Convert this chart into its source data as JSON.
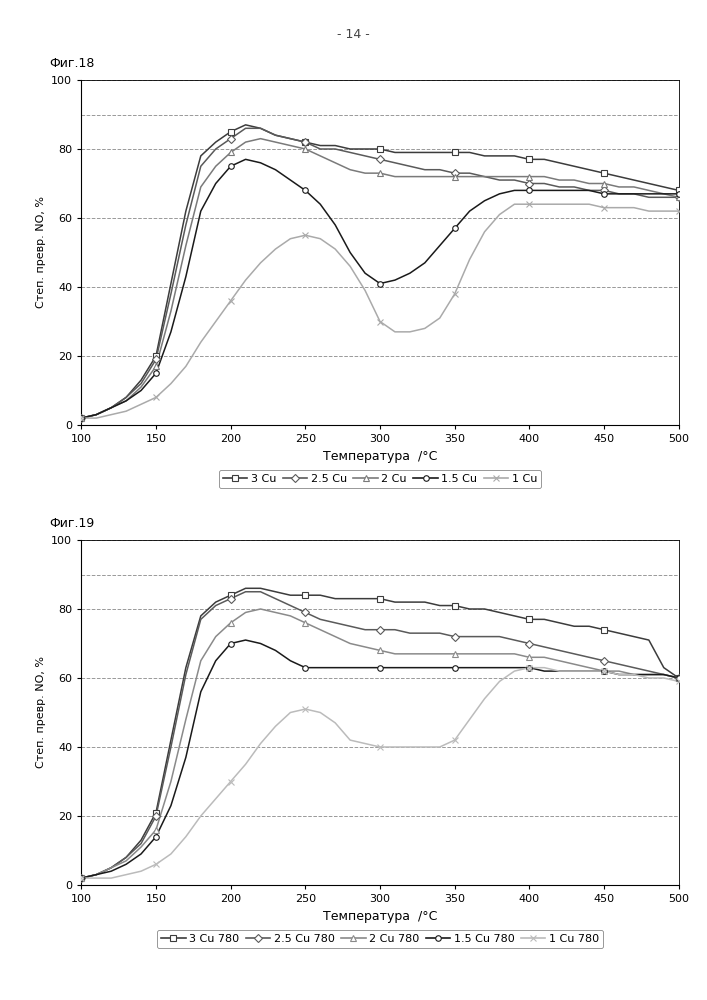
{
  "page_number": "- 14 -",
  "fig1_title": "Фиг.18",
  "fig2_title": "Фиг.19",
  "xlabel": "Температура  /°C",
  "ylabel": "Степ. превр. NO, %",
  "xlim": [
    100,
    500
  ],
  "ylim": [
    0,
    100
  ],
  "xticks": [
    100,
    150,
    200,
    250,
    300,
    350,
    400,
    450,
    500
  ],
  "yticks": [
    0,
    20,
    40,
    60,
    80,
    100
  ],
  "grid_yticks": [
    20,
    40,
    60,
    80,
    90,
    100
  ],
  "fig1_series": {
    "3Cu": {
      "color": "#3c3c3c",
      "marker": "s",
      "mfc": "white",
      "data_x": [
        100,
        110,
        120,
        130,
        140,
        150,
        160,
        170,
        180,
        190,
        200,
        210,
        220,
        230,
        240,
        250,
        260,
        270,
        280,
        290,
        300,
        310,
        320,
        330,
        340,
        350,
        360,
        370,
        380,
        390,
        400,
        410,
        420,
        430,
        440,
        450,
        460,
        470,
        480,
        490,
        500
      ],
      "data_y": [
        2,
        3,
        5,
        8,
        13,
        20,
        41,
        62,
        78,
        82,
        85,
        87,
        86,
        84,
        83,
        82,
        81,
        81,
        80,
        80,
        80,
        79,
        79,
        79,
        79,
        79,
        79,
        78,
        78,
        78,
        77,
        77,
        76,
        75,
        74,
        73,
        72,
        71,
        70,
        69,
        68
      ]
    },
    "2.5Cu": {
      "color": "#5a5a5a",
      "marker": "D",
      "mfc": "white",
      "data_x": [
        100,
        110,
        120,
        130,
        140,
        150,
        160,
        170,
        180,
        190,
        200,
        210,
        220,
        230,
        240,
        250,
        260,
        270,
        280,
        290,
        300,
        310,
        320,
        330,
        340,
        350,
        360,
        370,
        380,
        390,
        400,
        410,
        420,
        430,
        440,
        450,
        460,
        470,
        480,
        490,
        500
      ],
      "data_y": [
        2,
        3,
        5,
        8,
        12,
        19,
        38,
        58,
        75,
        80,
        83,
        86,
        86,
        84,
        83,
        82,
        80,
        80,
        79,
        78,
        77,
        76,
        75,
        74,
        74,
        73,
        73,
        72,
        71,
        71,
        70,
        70,
        69,
        69,
        68,
        68,
        67,
        67,
        66,
        66,
        66
      ]
    },
    "2Cu": {
      "color": "#7a7a7a",
      "marker": "^",
      "mfc": "white",
      "data_x": [
        100,
        110,
        120,
        130,
        140,
        150,
        160,
        170,
        180,
        190,
        200,
        210,
        220,
        230,
        240,
        250,
        260,
        270,
        280,
        290,
        300,
        310,
        320,
        330,
        340,
        350,
        360,
        370,
        380,
        390,
        400,
        410,
        420,
        430,
        440,
        450,
        460,
        470,
        480,
        490,
        500
      ],
      "data_y": [
        2,
        3,
        5,
        7,
        11,
        17,
        33,
        52,
        69,
        75,
        79,
        82,
        83,
        82,
        81,
        80,
        78,
        76,
        74,
        73,
        73,
        72,
        72,
        72,
        72,
        72,
        72,
        72,
        72,
        72,
        72,
        72,
        71,
        71,
        70,
        70,
        69,
        69,
        68,
        67,
        66
      ]
    },
    "1.5Cu": {
      "color": "#1a1a1a",
      "marker": "o",
      "mfc": "white",
      "data_x": [
        100,
        110,
        120,
        130,
        140,
        150,
        160,
        170,
        180,
        190,
        200,
        210,
        220,
        230,
        240,
        250,
        260,
        270,
        280,
        290,
        300,
        310,
        320,
        330,
        340,
        350,
        360,
        370,
        380,
        390,
        400,
        410,
        420,
        430,
        440,
        450,
        460,
        470,
        480,
        490,
        500
      ],
      "data_y": [
        2,
        3,
        5,
        7,
        10,
        15,
        27,
        43,
        62,
        70,
        75,
        77,
        76,
        74,
        71,
        68,
        64,
        58,
        50,
        44,
        41,
        42,
        44,
        47,
        52,
        57,
        62,
        65,
        67,
        68,
        68,
        68,
        68,
        68,
        68,
        67,
        67,
        67,
        67,
        67,
        67
      ]
    },
    "1Cu": {
      "color": "#aaaaaa",
      "marker": "x",
      "mfc": "#aaaaaa",
      "data_x": [
        100,
        110,
        120,
        130,
        140,
        150,
        160,
        170,
        180,
        190,
        200,
        210,
        220,
        230,
        240,
        250,
        260,
        270,
        280,
        290,
        300,
        310,
        320,
        330,
        340,
        350,
        360,
        370,
        380,
        390,
        400,
        410,
        420,
        430,
        440,
        450,
        460,
        470,
        480,
        490,
        500
      ],
      "data_y": [
        2,
        2,
        3,
        4,
        6,
        8,
        12,
        17,
        24,
        30,
        36,
        42,
        47,
        51,
        54,
        55,
        54,
        51,
        46,
        39,
        30,
        27,
        27,
        28,
        31,
        38,
        48,
        56,
        61,
        64,
        64,
        64,
        64,
        64,
        64,
        63,
        63,
        63,
        62,
        62,
        62
      ]
    }
  },
  "fig2_series": {
    "3Cu780": {
      "color": "#3c3c3c",
      "marker": "s",
      "mfc": "white",
      "data_x": [
        100,
        110,
        120,
        130,
        140,
        150,
        160,
        170,
        180,
        190,
        200,
        210,
        220,
        230,
        240,
        250,
        260,
        270,
        280,
        290,
        300,
        310,
        320,
        330,
        340,
        350,
        360,
        370,
        380,
        390,
        400,
        410,
        420,
        430,
        440,
        450,
        460,
        470,
        480,
        490,
        500
      ],
      "data_y": [
        2,
        3,
        5,
        8,
        13,
        21,
        42,
        63,
        78,
        82,
        84,
        86,
        86,
        85,
        84,
        84,
        84,
        83,
        83,
        83,
        83,
        82,
        82,
        82,
        81,
        81,
        80,
        80,
        79,
        78,
        77,
        77,
        76,
        75,
        75,
        74,
        73,
        72,
        71,
        63,
        60
      ]
    },
    "2.5Cu780": {
      "color": "#5a5a5a",
      "marker": "D",
      "mfc": "white",
      "data_x": [
        100,
        110,
        120,
        130,
        140,
        150,
        160,
        170,
        180,
        190,
        200,
        210,
        220,
        230,
        240,
        250,
        260,
        270,
        280,
        290,
        300,
        310,
        320,
        330,
        340,
        350,
        360,
        370,
        380,
        390,
        400,
        410,
        420,
        430,
        440,
        450,
        460,
        470,
        480,
        490,
        500
      ],
      "data_y": [
        2,
        3,
        5,
        8,
        12,
        20,
        40,
        61,
        77,
        81,
        83,
        85,
        85,
        83,
        81,
        79,
        77,
        76,
        75,
        74,
        74,
        74,
        73,
        73,
        73,
        72,
        72,
        72,
        72,
        71,
        70,
        69,
        68,
        67,
        66,
        65,
        64,
        63,
        62,
        61,
        60
      ]
    },
    "2Cu780": {
      "color": "#8a8a8a",
      "marker": "^",
      "mfc": "white",
      "data_x": [
        100,
        110,
        120,
        130,
        140,
        150,
        160,
        170,
        180,
        190,
        200,
        210,
        220,
        230,
        240,
        250,
        260,
        270,
        280,
        290,
        300,
        310,
        320,
        330,
        340,
        350,
        360,
        370,
        380,
        390,
        400,
        410,
        420,
        430,
        440,
        450,
        460,
        470,
        480,
        490,
        500
      ],
      "data_y": [
        2,
        3,
        5,
        7,
        11,
        16,
        30,
        48,
        65,
        72,
        76,
        79,
        80,
        79,
        78,
        76,
        74,
        72,
        70,
        69,
        68,
        67,
        67,
        67,
        67,
        67,
        67,
        67,
        67,
        67,
        66,
        66,
        65,
        64,
        63,
        62,
        62,
        61,
        61,
        61,
        60
      ]
    },
    "1.5Cu780": {
      "color": "#1a1a1a",
      "marker": "o",
      "mfc": "white",
      "data_x": [
        100,
        110,
        120,
        130,
        140,
        150,
        160,
        170,
        180,
        190,
        200,
        210,
        220,
        230,
        240,
        250,
        260,
        270,
        280,
        290,
        300,
        310,
        320,
        330,
        340,
        350,
        360,
        370,
        380,
        390,
        400,
        410,
        420,
        430,
        440,
        450,
        460,
        470,
        480,
        490,
        500
      ],
      "data_y": [
        2,
        3,
        4,
        6,
        9,
        14,
        23,
        37,
        56,
        65,
        70,
        71,
        70,
        68,
        65,
        63,
        63,
        63,
        63,
        63,
        63,
        63,
        63,
        63,
        63,
        63,
        63,
        63,
        63,
        63,
        63,
        62,
        62,
        62,
        62,
        62,
        61,
        61,
        61,
        61,
        60
      ]
    },
    "1Cu780": {
      "color": "#bbbbbb",
      "marker": "x",
      "mfc": "#bbbbbb",
      "data_x": [
        100,
        110,
        120,
        130,
        140,
        150,
        160,
        170,
        180,
        190,
        200,
        210,
        220,
        230,
        240,
        250,
        260,
        270,
        280,
        290,
        300,
        310,
        320,
        330,
        340,
        350,
        360,
        370,
        380,
        390,
        400,
        410,
        420,
        430,
        440,
        450,
        460,
        470,
        480,
        490,
        500
      ],
      "data_y": [
        2,
        2,
        2,
        3,
        4,
        6,
        9,
        14,
        20,
        25,
        30,
        35,
        41,
        46,
        50,
        51,
        50,
        47,
        42,
        41,
        40,
        40,
        40,
        40,
        40,
        42,
        48,
        54,
        59,
        62,
        63,
        63,
        62,
        62,
        62,
        62,
        61,
        61,
        60,
        60,
        59
      ]
    }
  },
  "fig1_legend": [
    "3 Cu",
    "2.5 Cu",
    "2 Cu",
    "1.5 Cu",
    "1 Cu"
  ],
  "fig2_legend": [
    "3 Cu 780",
    "2.5 Cu 780",
    "2 Cu 780",
    "1.5 Cu 780",
    "1 Cu 780"
  ],
  "bg_color": "#ffffff",
  "grid_color": "#999999",
  "grid_linestyle": "--",
  "grid_linewidth": 0.7,
  "marker_size": 4,
  "linewidth": 1.1
}
